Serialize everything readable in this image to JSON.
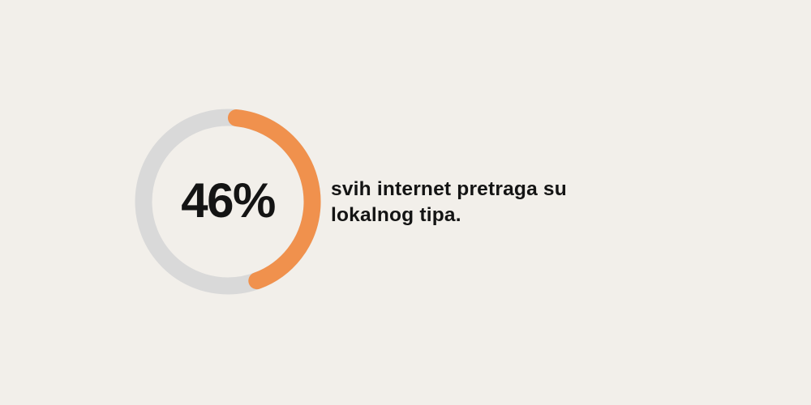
{
  "page": {
    "background_color": "#F2EFEA"
  },
  "chart_data": {
    "type": "pie",
    "variant": "donut-progress",
    "value_pct": 46,
    "remainder_pct": 54,
    "center_label": "46%",
    "annotation": "svih internet pretraga su lokalnog tipa.",
    "progress_color": "#F0914D",
    "track_color": "#D9D9D9",
    "start_angle_deg": 0,
    "direction": "clockwise",
    "legend": "none",
    "grid": "off"
  },
  "stat": {
    "value": "46%",
    "caption_lines": [
      "svih internet pretraga su",
      "lokalnog tipa."
    ]
  },
  "colors": {
    "text": "#141414",
    "accent_orange": "#F0914D",
    "ring_track_gray": "#D9D9D9",
    "background": "#F2EFEA"
  }
}
